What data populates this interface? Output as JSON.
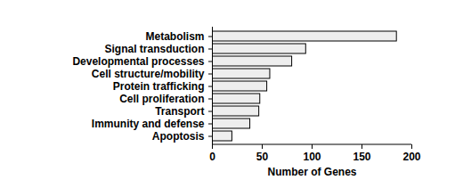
{
  "chart_data": {
    "type": "bar",
    "orientation": "horizontal",
    "categories": [
      "Metabolism",
      "Signal transduction",
      "Developmental processes",
      "Cell structure/mobility",
      "Protein trafficking",
      "Cell proliferation",
      "Transport",
      "Immunity and defense",
      "Apoptosis"
    ],
    "values": [
      185,
      94,
      80,
      58,
      55,
      48,
      47,
      38,
      20
    ],
    "color": "#eeeeee",
    "x_label": "Number of Genes",
    "xlim": [
      0,
      200
    ],
    "xticks": [
      0,
      50,
      100,
      150,
      200
    ],
    "grid": false
  }
}
